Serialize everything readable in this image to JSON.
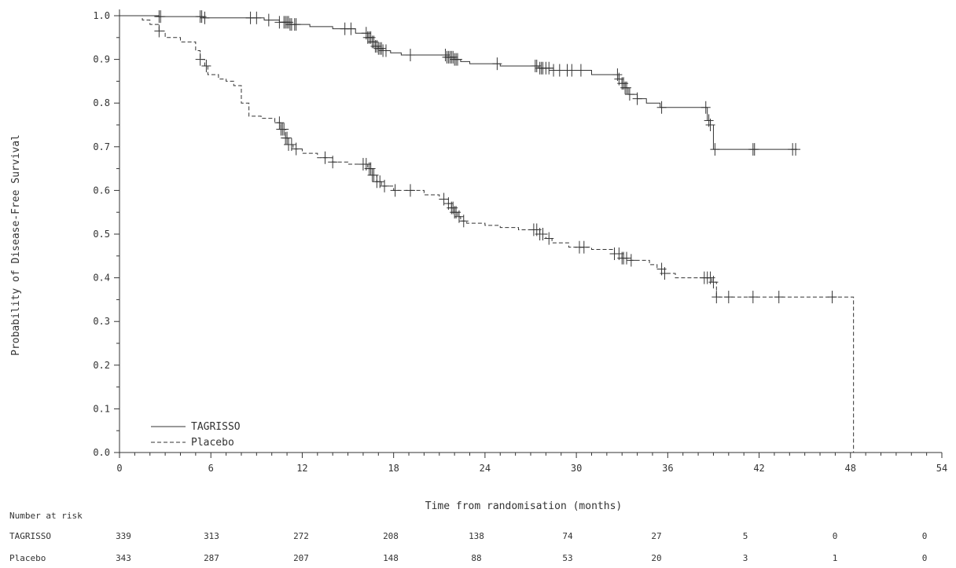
{
  "chart_data": {
    "type": "line",
    "subtype": "kaplan-meier",
    "xlabel": "Time from randomisation (months)",
    "ylabel": "Probability of Disease-Free Survival",
    "xlim": [
      0,
      54
    ],
    "ylim": [
      0,
      1
    ],
    "x_ticks": [
      0,
      6,
      12,
      18,
      24,
      30,
      36,
      42,
      48,
      54
    ],
    "y_ticks": [
      0.0,
      0.1,
      0.2,
      0.3,
      0.4,
      0.5,
      0.6,
      0.7,
      0.8,
      0.9,
      1.0
    ],
    "legend_position": "bottom-left",
    "grid": false,
    "series": [
      {
        "name": "TAGRISSO",
        "line_style": "solid",
        "color": "#333333",
        "steps": [
          [
            0,
            1.0
          ],
          [
            2.6,
            0.998
          ],
          [
            5.5,
            0.995
          ],
          [
            9.5,
            0.99
          ],
          [
            10.5,
            0.985
          ],
          [
            11.2,
            0.98
          ],
          [
            12.5,
            0.975
          ],
          [
            14,
            0.97
          ],
          [
            15.5,
            0.96
          ],
          [
            16.3,
            0.95
          ],
          [
            16.6,
            0.94
          ],
          [
            16.8,
            0.93
          ],
          [
            17.0,
            0.925
          ],
          [
            17.3,
            0.92
          ],
          [
            17.8,
            0.915
          ],
          [
            18.5,
            0.91
          ],
          [
            21.5,
            0.905
          ],
          [
            22.0,
            0.9
          ],
          [
            22.4,
            0.895
          ],
          [
            23,
            0.89
          ],
          [
            25,
            0.885
          ],
          [
            27.5,
            0.88
          ],
          [
            28.5,
            0.875
          ],
          [
            31,
            0.865
          ],
          [
            32.8,
            0.855
          ],
          [
            33.0,
            0.845
          ],
          [
            33.2,
            0.835
          ],
          [
            33.4,
            0.82
          ],
          [
            34,
            0.81
          ],
          [
            34.6,
            0.8
          ],
          [
            35.5,
            0.79
          ],
          [
            38.6,
            0.76
          ],
          [
            38.8,
            0.75
          ],
          [
            39.0,
            0.694
          ],
          [
            44.5,
            0.694
          ]
        ],
        "censor_times": [
          0,
          2.6,
          2.7,
          5.3,
          5.4,
          5.6,
          8.6,
          9.0,
          9.8,
          10.5,
          10.8,
          10.9,
          11.0,
          11.1,
          11.2,
          11.3,
          11.5,
          11.6,
          14.8,
          15.2,
          16.2,
          16.3,
          16.4,
          16.5,
          16.6,
          16.7,
          16.8,
          16.9,
          17.0,
          17.1,
          17.2,
          17.3,
          17.5,
          19.1,
          21.4,
          21.5,
          21.6,
          21.7,
          21.8,
          21.9,
          22.0,
          22.1,
          22.2,
          24.8,
          27.3,
          27.4,
          27.6,
          27.7,
          27.8,
          28.0,
          28.2,
          28.5,
          28.9,
          29.4,
          29.7,
          30.3,
          32.7,
          32.8,
          33.0,
          33.1,
          33.2,
          33.3,
          33.5,
          34.0,
          35.6,
          38.5,
          38.7,
          38.8,
          39.1,
          41.6,
          41.7,
          44.2,
          44.4
        ]
      },
      {
        "name": "Placebo",
        "line_style": "dashed",
        "color": "#333333",
        "steps": [
          [
            0,
            1.0
          ],
          [
            1.5,
            0.99
          ],
          [
            2.0,
            0.98
          ],
          [
            2.6,
            0.965
          ],
          [
            3.0,
            0.95
          ],
          [
            4.0,
            0.94
          ],
          [
            5.0,
            0.92
          ],
          [
            5.3,
            0.9
          ],
          [
            5.6,
            0.885
          ],
          [
            5.8,
            0.865
          ],
          [
            6.5,
            0.855
          ],
          [
            7.0,
            0.85
          ],
          [
            7.5,
            0.84
          ],
          [
            8.0,
            0.8
          ],
          [
            8.5,
            0.77
          ],
          [
            9.3,
            0.765
          ],
          [
            10.2,
            0.755
          ],
          [
            10.6,
            0.74
          ],
          [
            10.9,
            0.72
          ],
          [
            11.1,
            0.705
          ],
          [
            11.4,
            0.695
          ],
          [
            12,
            0.685
          ],
          [
            13,
            0.675
          ],
          [
            14,
            0.665
          ],
          [
            15,
            0.66
          ],
          [
            16.3,
            0.65
          ],
          [
            16.6,
            0.635
          ],
          [
            16.9,
            0.62
          ],
          [
            17.2,
            0.61
          ],
          [
            18,
            0.6
          ],
          [
            20,
            0.59
          ],
          [
            21,
            0.58
          ],
          [
            21.6,
            0.57
          ],
          [
            21.8,
            0.56
          ],
          [
            22.0,
            0.55
          ],
          [
            22.2,
            0.54
          ],
          [
            22.4,
            0.53
          ],
          [
            22.8,
            0.525
          ],
          [
            24,
            0.52
          ],
          [
            25,
            0.515
          ],
          [
            26.2,
            0.51
          ],
          [
            27.6,
            0.5
          ],
          [
            28.0,
            0.49
          ],
          [
            28.4,
            0.48
          ],
          [
            29.5,
            0.47
          ],
          [
            31,
            0.465
          ],
          [
            32.5,
            0.455
          ],
          [
            33,
            0.445
          ],
          [
            33.5,
            0.44
          ],
          [
            34.8,
            0.43
          ],
          [
            35.3,
            0.42
          ],
          [
            35.8,
            0.41
          ],
          [
            36.5,
            0.4
          ],
          [
            38.9,
            0.39
          ],
          [
            39.2,
            0.356
          ],
          [
            48.2,
            0.356
          ],
          [
            48.2,
            0.0
          ]
        ],
        "censor_times": [
          0,
          2.6,
          5.3,
          5.7,
          10.5,
          10.6,
          10.7,
          10.8,
          10.9,
          11.0,
          11.1,
          11.3,
          11.6,
          13.5,
          14.0,
          16.0,
          16.2,
          16.4,
          16.5,
          16.6,
          16.7,
          16.9,
          17.1,
          17.4,
          18.1,
          19.1,
          21.3,
          21.6,
          21.8,
          21.9,
          22.0,
          22.1,
          22.3,
          22.6,
          27.2,
          27.4,
          27.6,
          27.8,
          28.2,
          30.2,
          30.5,
          32.5,
          32.8,
          33.0,
          33.1,
          33.3,
          33.6,
          35.6,
          35.8,
          38.4,
          38.6,
          38.8,
          39.0,
          39.2,
          40.0,
          41.6,
          43.3,
          46.8
        ]
      }
    ],
    "number_at_risk": {
      "label": "Number at risk",
      "rows": [
        {
          "name": "TAGRISSO",
          "values": [
            "339",
            "313",
            "272",
            "208",
            "138",
            "74",
            "27",
            "5",
            "0",
            "0"
          ]
        },
        {
          "name": "Placebo",
          "values": [
            "343",
            "287",
            "207",
            "148",
            "88",
            "53",
            "20",
            "3",
            "1",
            "0"
          ]
        }
      ]
    }
  }
}
